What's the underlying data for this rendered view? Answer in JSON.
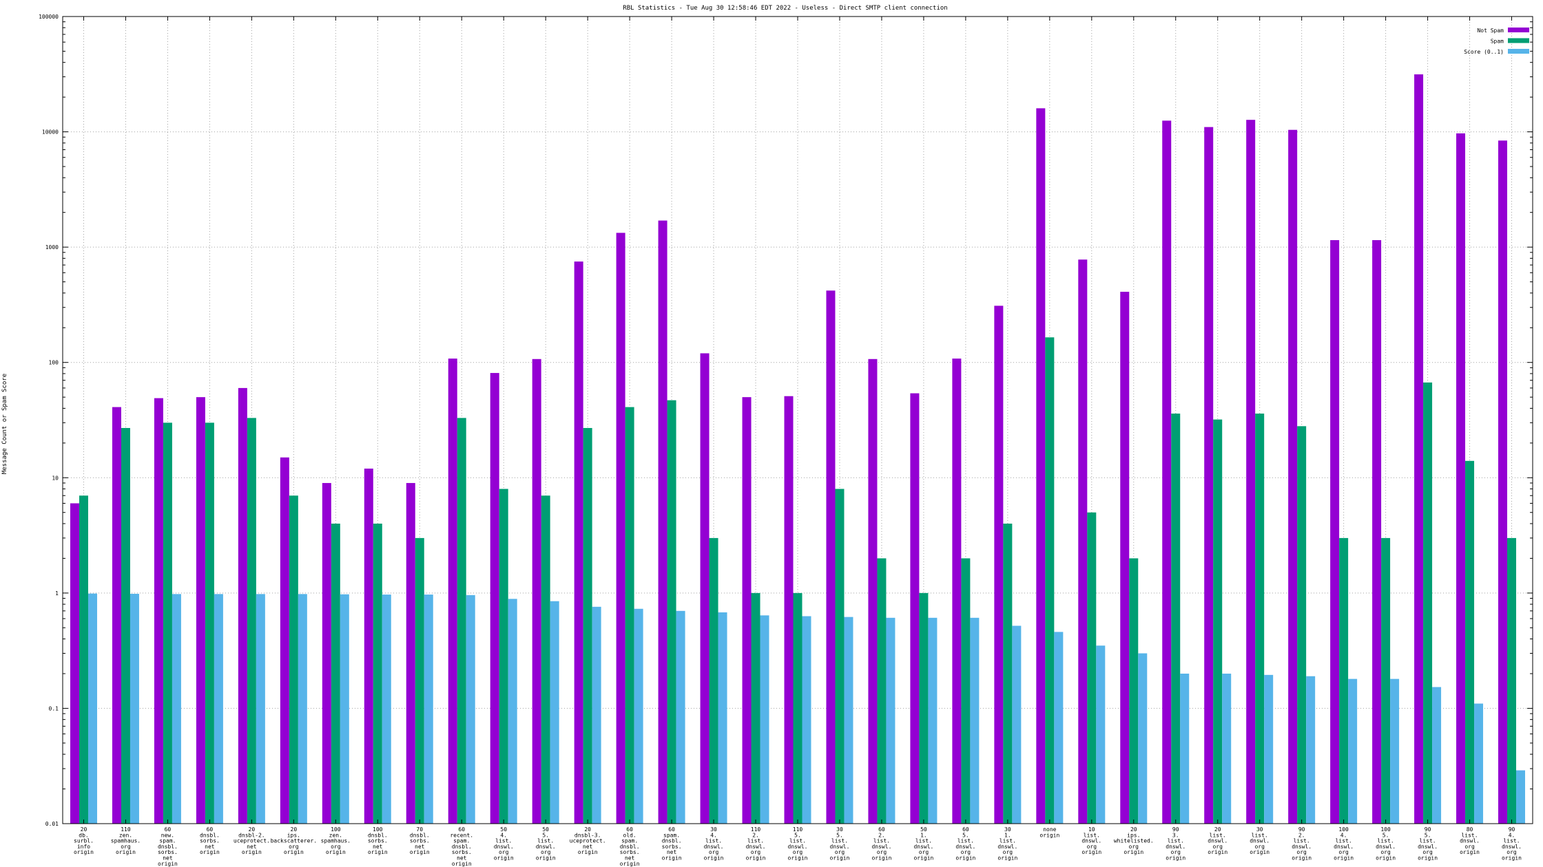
{
  "chart_data": {
    "type": "bar",
    "title": "RBL Statistics - Tue Aug 30 12:58:46 EDT 2022 - Useless - Direct SMTP client connection",
    "xlabel": "",
    "ylabel": "Message Count or Spam Score",
    "yscale": "log",
    "ylim": [
      0.01,
      100000
    ],
    "yticks": [
      "0.01",
      "0.1",
      "1",
      "10",
      "100",
      "1000",
      "10000",
      "100000"
    ],
    "grid": true,
    "legend_position": "top-right",
    "categories": [
      "20\ndb.\nsurbl.\ninfo\norigin",
      "110\nzen.\nspamhaus.\norg\norigin",
      "60\nnew.\nspam.\ndnsbl.\nsorbs.\nnet\norigin",
      "60\ndnsbl.\nsorbs.\nnet\norigin",
      "20\ndnsbl-2.\nuceprotect.\nnet\norigin",
      "20\nips.\nbackscatterer.\norg\norigin",
      "100\nzen.\nspamhaus.\norg\norigin",
      "100\ndnsbl.\nsorbs.\nnet\norigin",
      "70\ndnsbl.\nsorbs.\nnet\norigin",
      "60\nrecent.\nspam.\ndnsbl.\nsorbs.\nnet\norigin",
      "50\n4.\nlist.\ndnswl.\norg\norigin",
      "50\n5.\nlist.\ndnswl.\norg\norigin",
      "20\ndnsbl-3.\nuceprotect.\nnet\norigin",
      "60\nold.\nspam.\ndnsbl.\nsorbs.\nnet\norigin",
      "60\nspam.\ndnsbl.\nsorbs.\nnet\norigin",
      "30\n4.\nlist.\ndnswl.\norg\norigin",
      "110\n2.\nlist.\ndnswl.\norg\norigin",
      "110\n5.\nlist.\ndnswl.\norg\norigin",
      "30\n5.\nlist.\ndnswl.\norg\norigin",
      "60\n2.\nlist.\ndnswl.\norg\norigin",
      "50\n1.\nlist.\ndnswl.\norg\norigin",
      "60\n5.\nlist.\ndnswl.\norg\norigin",
      "30\n1.\nlist.\ndnswl.\norg\norigin",
      "none\norigin",
      "10\nlist.\ndnswl.\norg\norigin",
      "20\nips.\nwhitelisted.\norg\norigin",
      "90\n3.\nlist.\ndnswl.\norg\norigin",
      "20\nlist.\ndnswl.\norg\norigin",
      "30\nlist.\ndnswl.\norg\norigin",
      "90\n2.\nlist.\ndnswl.\norg\norigin",
      "100\n4.\nlist.\ndnswl.\norg\norigin",
      "100\n5.\nlist.\ndnswl.\norg\norigin",
      "90\n5.\nlist.\ndnswl.\norg\norigin",
      "80\nlist.\ndnswl.\norg\norigin",
      "90\n4.\nlist.\ndnswl.\norg\norigin"
    ],
    "series": [
      {
        "name": "Not Spam",
        "color": "#9400D3",
        "values": [
          6,
          41,
          49,
          50,
          60,
          15,
          9,
          12,
          9,
          108,
          81,
          107,
          750,
          1330,
          1700,
          120,
          50,
          51,
          420,
          107,
          54,
          108,
          310,
          16000,
          780,
          410,
          12500,
          11000,
          12700,
          10400,
          1150,
          1150,
          31500,
          9700,
          8400
        ]
      },
      {
        "name": "Spam",
        "color": "#009E73",
        "values": [
          7,
          27,
          30,
          30,
          33,
          7,
          4,
          4,
          3,
          33,
          8,
          7,
          27,
          41,
          47,
          3,
          1,
          1,
          8,
          2,
          1,
          2,
          4,
          165,
          5,
          2,
          36,
          32,
          36,
          28,
          3,
          3,
          67,
          14,
          3
        ]
      },
      {
        "name": "Score (0..1)",
        "color": "#56B4E9",
        "values": [
          0.99,
          0.985,
          0.98,
          0.98,
          0.98,
          0.98,
          0.975,
          0.97,
          0.97,
          0.96,
          0.89,
          0.85,
          0.76,
          0.73,
          0.7,
          0.68,
          0.64,
          0.63,
          0.62,
          0.61,
          0.61,
          0.61,
          0.52,
          0.46,
          0.35,
          0.3,
          0.2,
          0.2,
          0.195,
          0.19,
          0.18,
          0.18,
          0.153,
          0.11,
          0.029
        ]
      }
    ]
  }
}
